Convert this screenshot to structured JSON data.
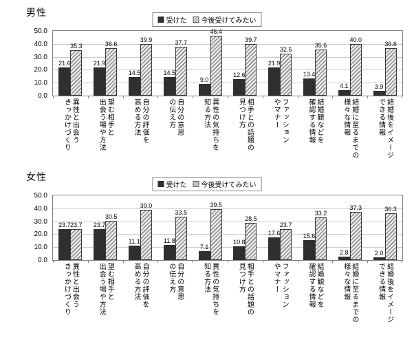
{
  "colors": {
    "bar_received": "#2f2f2f",
    "hatch_foreground": "#8c8c8c",
    "hatch_background": "#ececec",
    "gridline": "#c9c9c9",
    "axis": "#808080"
  },
  "chart_data": [
    {
      "type": "bar",
      "title": "男性",
      "categories": [
        [
          "異性と出会う",
          "きっかけづくり"
        ],
        [
          "望む相手と",
          "出会う場や方法"
        ],
        [
          "自分の評価を",
          "高める方法"
        ],
        [
          "自分の意思",
          "の伝え方"
        ],
        [
          "異性の気持ちを",
          "知る方法"
        ],
        [
          "相手との話題の",
          "見つけ方"
        ],
        [
          "ファッション",
          "やマナー"
        ],
        [
          "結婚観などを",
          "確認する情報"
        ],
        [
          "結婚に至るまでの",
          "様々な情報"
        ],
        [
          "結婚後をイメージ",
          "できる情報"
        ]
      ],
      "series": [
        {
          "name": "受けた",
          "values": [
            21.6,
            21.9,
            14.5,
            14.5,
            9.0,
            12.6,
            21.9,
            13.4,
            4.1,
            3.9
          ]
        },
        {
          "name": "今後受けてみたい",
          "values": [
            35.3,
            36.6,
            39.9,
            37.7,
            46.4,
            39.7,
            32.5,
            35.6,
            40.0,
            36.6
          ]
        }
      ],
      "ylim": [
        0,
        50
      ],
      "y_tick_step": 10,
      "grid": true,
      "legend_position": "top-center"
    },
    {
      "type": "bar",
      "title": "女性",
      "categories": [
        [
          "異性と出会う",
          "きっかけづくり"
        ],
        [
          "望む相手と",
          "出会う場や方法"
        ],
        [
          "自分の評価を",
          "高める方法"
        ],
        [
          "自分の意思",
          "の伝え方"
        ],
        [
          "異性の気持ちを",
          "知る方法"
        ],
        [
          "相手との話題の",
          "見つけ方"
        ],
        [
          "ファッション",
          "やマナー"
        ],
        [
          "結婚観などを",
          "確認する情報"
        ],
        [
          "結婚に至るまでの",
          "様々な情報"
        ],
        [
          "結婚後をイメージ",
          "できる情報"
        ]
      ],
      "series": [
        {
          "name": "受けた",
          "values": [
            23.7,
            23.7,
            11.1,
            11.8,
            7.1,
            10.8,
            17.6,
            15.6,
            2.8,
            2.0
          ]
        },
        {
          "name": "今後受けてみたい",
          "values": [
            23.7,
            30.5,
            39.0,
            33.5,
            39.5,
            28.5,
            23.7,
            33.2,
            37.3,
            36.3
          ]
        }
      ],
      "ylim": [
        0,
        50
      ],
      "y_tick_step": 10,
      "grid": true,
      "legend_position": "top-center"
    }
  ]
}
